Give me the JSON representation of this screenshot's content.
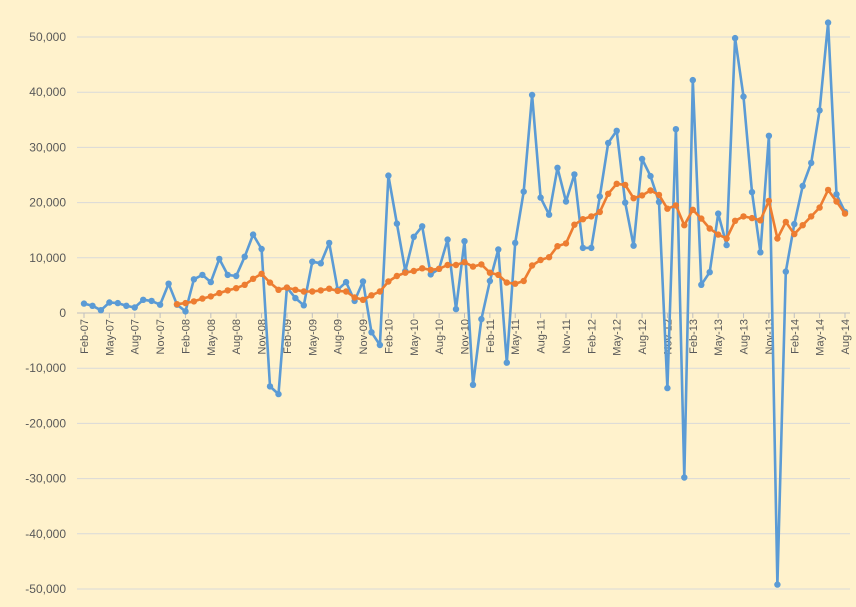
{
  "chart_data": {
    "type": "line",
    "title": "",
    "xlabel": "",
    "ylabel": "",
    "ylim": [
      -50000,
      50000
    ],
    "y_ticks": [
      50000,
      40000,
      30000,
      20000,
      10000,
      0,
      -10000,
      -20000,
      -30000,
      -40000,
      -50000
    ],
    "y_tick_labels": [
      "50,000",
      "40,000",
      "30,000",
      "20,000",
      "10,000",
      "0",
      "-10,000",
      "-20,000",
      "-30,000",
      "-40,000",
      "-50,000"
    ],
    "grid": "horizontal",
    "legend": "none",
    "x_tick_labels": [
      "Feb-07",
      "May-07",
      "Aug-07",
      "Nov-07",
      "Feb-08",
      "May-08",
      "Aug-08",
      "Nov-08",
      "Feb-09",
      "May-09",
      "Aug-09",
      "Nov-09",
      "Feb-10",
      "May-10",
      "Aug-10",
      "Nov-10",
      "Feb-11",
      "May-11",
      "Aug-11",
      "Nov-11",
      "Feb-12",
      "May-12",
      "Aug-12",
      "Nov-12",
      "Feb-13",
      "May-13",
      "Aug-13",
      "Nov-13",
      "Feb-14",
      "May-14",
      "Aug-14"
    ],
    "x_tick_months": [
      "Feb-07",
      "May-07",
      "Aug-07",
      "Nov-07",
      "Feb-08",
      "May-08",
      "Aug-08",
      "Nov-08",
      "Feb-09",
      "May-09",
      "Aug-09",
      "Nov-09",
      "Feb-10",
      "May-10",
      "Aug-10",
      "Nov-10",
      "Feb-11",
      "May-11",
      "Aug-11",
      "Nov-11",
      "Feb-12",
      "May-12",
      "Aug-12",
      "Nov-12",
      "Feb-13",
      "May-13",
      "Aug-13",
      "Nov-13",
      "Feb-14",
      "May-14",
      "Aug-14"
    ],
    "series": [
      {
        "color": "#5b9bd5",
        "start": "Feb-07",
        "values": [
          1700,
          1300,
          500,
          1900,
          1800,
          1300,
          1000,
          2400,
          2200,
          1500,
          5300,
          1500,
          300,
          6100,
          6900,
          5600,
          9800,
          6900,
          6700,
          10200,
          14200,
          11600,
          -13300,
          -14700,
          4600,
          2700,
          1400,
          9300,
          9000,
          12700,
          4200,
          5600,
          2200,
          5700,
          -3500,
          -5800,
          24900,
          16200,
          7600,
          13800,
          15700,
          7000,
          8000,
          13300,
          700,
          13000,
          -13000,
          -1100,
          5800,
          11500,
          -9000,
          12700,
          22000,
          39500,
          20900,
          17800,
          26300,
          20200,
          25100,
          11800,
          11800,
          21100,
          30800,
          33000,
          20000,
          12200,
          27900,
          24800,
          20100,
          -13600,
          33300,
          -29800,
          42200,
          5100,
          7400,
          18000,
          12300,
          49800,
          39200,
          21900,
          11000,
          32100,
          -49200,
          7500,
          16100,
          23000,
          27200,
          36700,
          52600,
          21500,
          18300
        ]
      },
      {
        "color": "#ed7d31",
        "start": "Jan-08",
        "values": [
          1600,
          1800,
          2100,
          2600,
          3000,
          3600,
          4100,
          4500,
          5100,
          6200,
          7100,
          5500,
          4200,
          4600,
          4200,
          3900,
          3900,
          4100,
          4400,
          4000,
          3900,
          2800,
          2400,
          3200,
          3900,
          5700,
          6700,
          7300,
          7600,
          8100,
          7800,
          8000,
          8700,
          8700,
          9200,
          8400,
          8800,
          7300,
          6900,
          5500,
          5300,
          5800,
          8600,
          9600,
          10100,
          12100,
          12600,
          16000,
          17000,
          17500,
          18300,
          21600,
          23400,
          23200,
          20800,
          21300,
          22200,
          21400,
          18900,
          19500,
          15900,
          18700,
          17100,
          15300,
          14200,
          13500,
          16700,
          17500,
          17200,
          16800,
          20300,
          13500,
          16500,
          14300,
          15900,
          17500,
          19100,
          22300,
          20200,
          18000
        ]
      }
    ]
  }
}
